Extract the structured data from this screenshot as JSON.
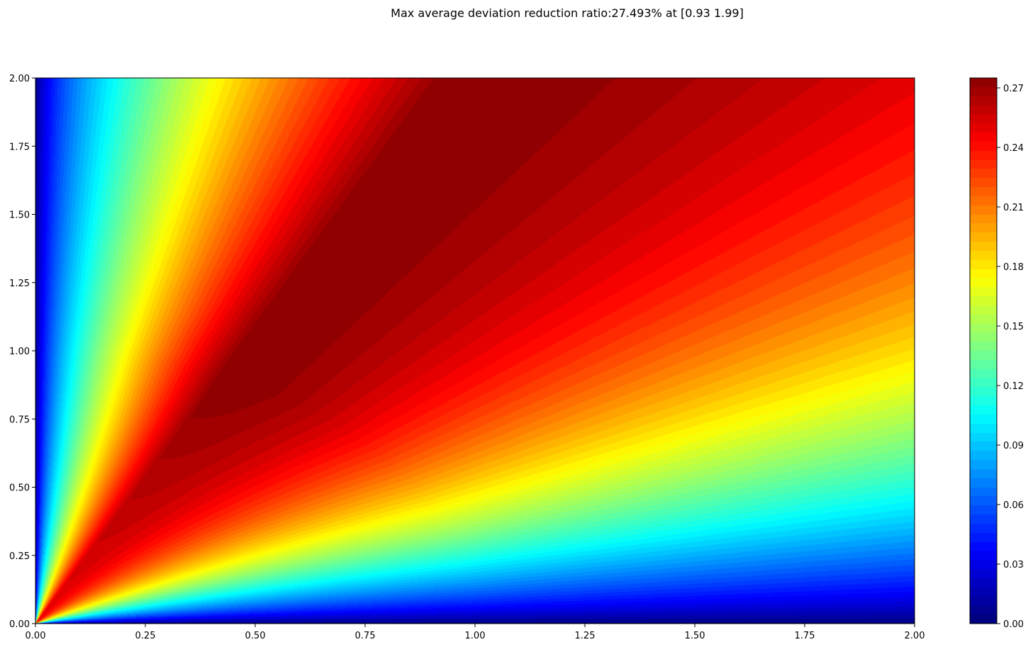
{
  "chart_data": {
    "type": "heatmap",
    "title": "Max average deviation reduction ratio:27.493% at [0.93 1.99]",
    "xlabel": "",
    "ylabel": "",
    "xlim": [
      0,
      2
    ],
    "ylim": [
      0,
      2
    ],
    "x_ticks": [
      "0.00",
      "0.25",
      "0.50",
      "0.75",
      "1.00",
      "1.25",
      "1.50",
      "1.75",
      "2.00"
    ],
    "y_ticks": [
      "0.00",
      "0.25",
      "0.50",
      "0.75",
      "1.00",
      "1.25",
      "1.50",
      "1.75",
      "2.00"
    ],
    "colormap": "jet",
    "colorbar": {
      "range": [
        0,
        0.275
      ],
      "ticks": [
        "0.00",
        "0.03",
        "0.06",
        "0.09",
        "0.12",
        "0.15",
        "0.18",
        "0.21",
        "0.24",
        "0.27"
      ]
    },
    "maximum": {
      "value": 0.27493,
      "x": 0.93,
      "y": 1.99
    },
    "grid": false,
    "legend": "colorbar-right"
  }
}
